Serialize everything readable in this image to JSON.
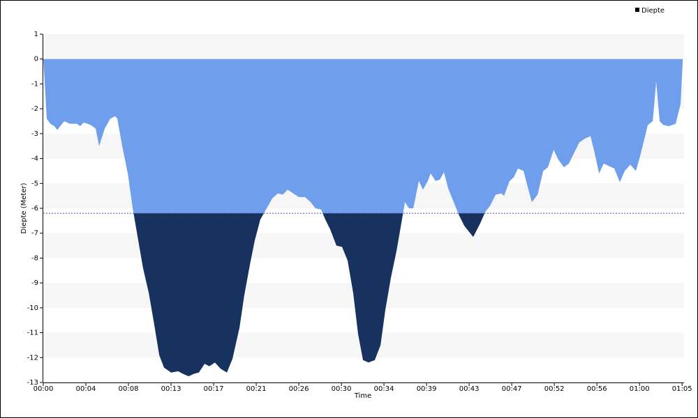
{
  "chart_data": {
    "type": "area",
    "legend": "top-right",
    "xlabel": "Time",
    "ylabel": "Diepte (Meter)",
    "grid": "bands",
    "threshold": -6.2,
    "xlim": [
      0,
      3912
    ],
    "ylim": [
      -13,
      1
    ],
    "yticks": [
      1,
      0,
      -1,
      -2,
      -3,
      -4,
      -5,
      -6,
      -7,
      -8,
      -9,
      -10,
      -11,
      -12,
      -13
    ],
    "xticks": [
      {
        "value": 0,
        "label": "00:00"
      },
      {
        "value": 260,
        "label": "00:04"
      },
      {
        "value": 520,
        "label": "00:08"
      },
      {
        "value": 780,
        "label": "00:13"
      },
      {
        "value": 1040,
        "label": "00:17"
      },
      {
        "value": 1300,
        "label": "00:21"
      },
      {
        "value": 1560,
        "label": "00:26"
      },
      {
        "value": 1820,
        "label": "00:30"
      },
      {
        "value": 2080,
        "label": "00:34"
      },
      {
        "value": 2340,
        "label": "00:39"
      },
      {
        "value": 2600,
        "label": "00:43"
      },
      {
        "value": 2860,
        "label": "00:47"
      },
      {
        "value": 3120,
        "label": "00:52"
      },
      {
        "value": 3380,
        "label": "00:56"
      },
      {
        "value": 3640,
        "label": "01:00"
      },
      {
        "value": 3900,
        "label": "01:05"
      }
    ],
    "x": [
      0,
      13,
      21,
      43,
      68,
      85,
      128,
      162,
      205,
      226,
      247,
      290,
      320,
      341,
      375,
      409,
      439,
      452,
      482,
      516,
      546,
      580,
      609,
      644,
      673,
      708,
      737,
      780,
      823,
      852,
      887,
      921,
      950,
      985,
      1014,
      1048,
      1083,
      1121,
      1155,
      1198,
      1227,
      1262,
      1291,
      1325,
      1364,
      1398,
      1432,
      1462,
      1492,
      1526,
      1560,
      1598,
      1632,
      1662,
      1696,
      1722,
      1752,
      1790,
      1824,
      1858,
      1892,
      1922,
      1952,
      1986,
      2024,
      2059,
      2088,
      2122,
      2157,
      2186,
      2208,
      2233,
      2259,
      2293,
      2318,
      2348,
      2365,
      2395,
      2421,
      2446,
      2472,
      2506,
      2536,
      2570,
      2600,
      2625,
      2668,
      2698,
      2728,
      2762,
      2796,
      2813,
      2847,
      2873,
      2898,
      2932,
      2954,
      2983,
      3018,
      3052,
      3081,
      3116,
      3145,
      3179,
      3209,
      3239,
      3273,
      3307,
      3341,
      3367,
      3393,
      3422,
      3452,
      3486,
      3520,
      3550,
      3584,
      3618,
      3644,
      3691,
      3721,
      3742,
      3763,
      3785,
      3819,
      3861,
      3891,
      3904
    ],
    "series": [
      {
        "name": "Diepte",
        "color": "#6f9fec",
        "threshold_color": "#17325f",
        "values": [
          0,
          -1.4,
          -2.4,
          -2.6,
          -2.7,
          -2.85,
          -2.5,
          -2.6,
          -2.6,
          -2.7,
          -2.55,
          -2.65,
          -2.8,
          -3.5,
          -2.8,
          -2.4,
          -2.3,
          -2.4,
          -3.5,
          -4.6,
          -6.0,
          -7.3,
          -8.4,
          -9.4,
          -10.5,
          -11.9,
          -12.4,
          -12.6,
          -12.55,
          -12.65,
          -12.75,
          -12.65,
          -12.6,
          -12.25,
          -12.35,
          -12.2,
          -12.45,
          -12.6,
          -12.05,
          -10.8,
          -9.5,
          -8.25,
          -7.3,
          -6.45,
          -6.0,
          -5.6,
          -5.4,
          -5.45,
          -5.25,
          -5.4,
          -5.55,
          -5.55,
          -5.75,
          -6.0,
          -6.05,
          -6.45,
          -6.85,
          -7.5,
          -7.55,
          -8.1,
          -9.4,
          -11.05,
          -12.1,
          -12.2,
          -12.1,
          -11.5,
          -10.1,
          -8.8,
          -7.7,
          -6.6,
          -5.75,
          -6.0,
          -6.0,
          -4.9,
          -5.25,
          -4.9,
          -4.6,
          -4.9,
          -4.85,
          -4.55,
          -5.2,
          -5.75,
          -6.25,
          -6.7,
          -6.95,
          -7.15,
          -6.6,
          -6.15,
          -5.9,
          -5.45,
          -5.4,
          -5.5,
          -4.9,
          -4.75,
          -4.4,
          -4.5,
          -5.05,
          -5.75,
          -5.45,
          -4.5,
          -4.35,
          -3.65,
          -4.05,
          -4.35,
          -4.2,
          -3.8,
          -3.35,
          -3.2,
          -3.1,
          -3.8,
          -4.6,
          -4.2,
          -4.3,
          -4.4,
          -4.95,
          -4.5,
          -4.25,
          -4.5,
          -3.9,
          -2.65,
          -2.5,
          -0.9,
          -2.5,
          -2.65,
          -2.7,
          -2.6,
          -1.8,
          -0.1
        ]
      }
    ]
  }
}
